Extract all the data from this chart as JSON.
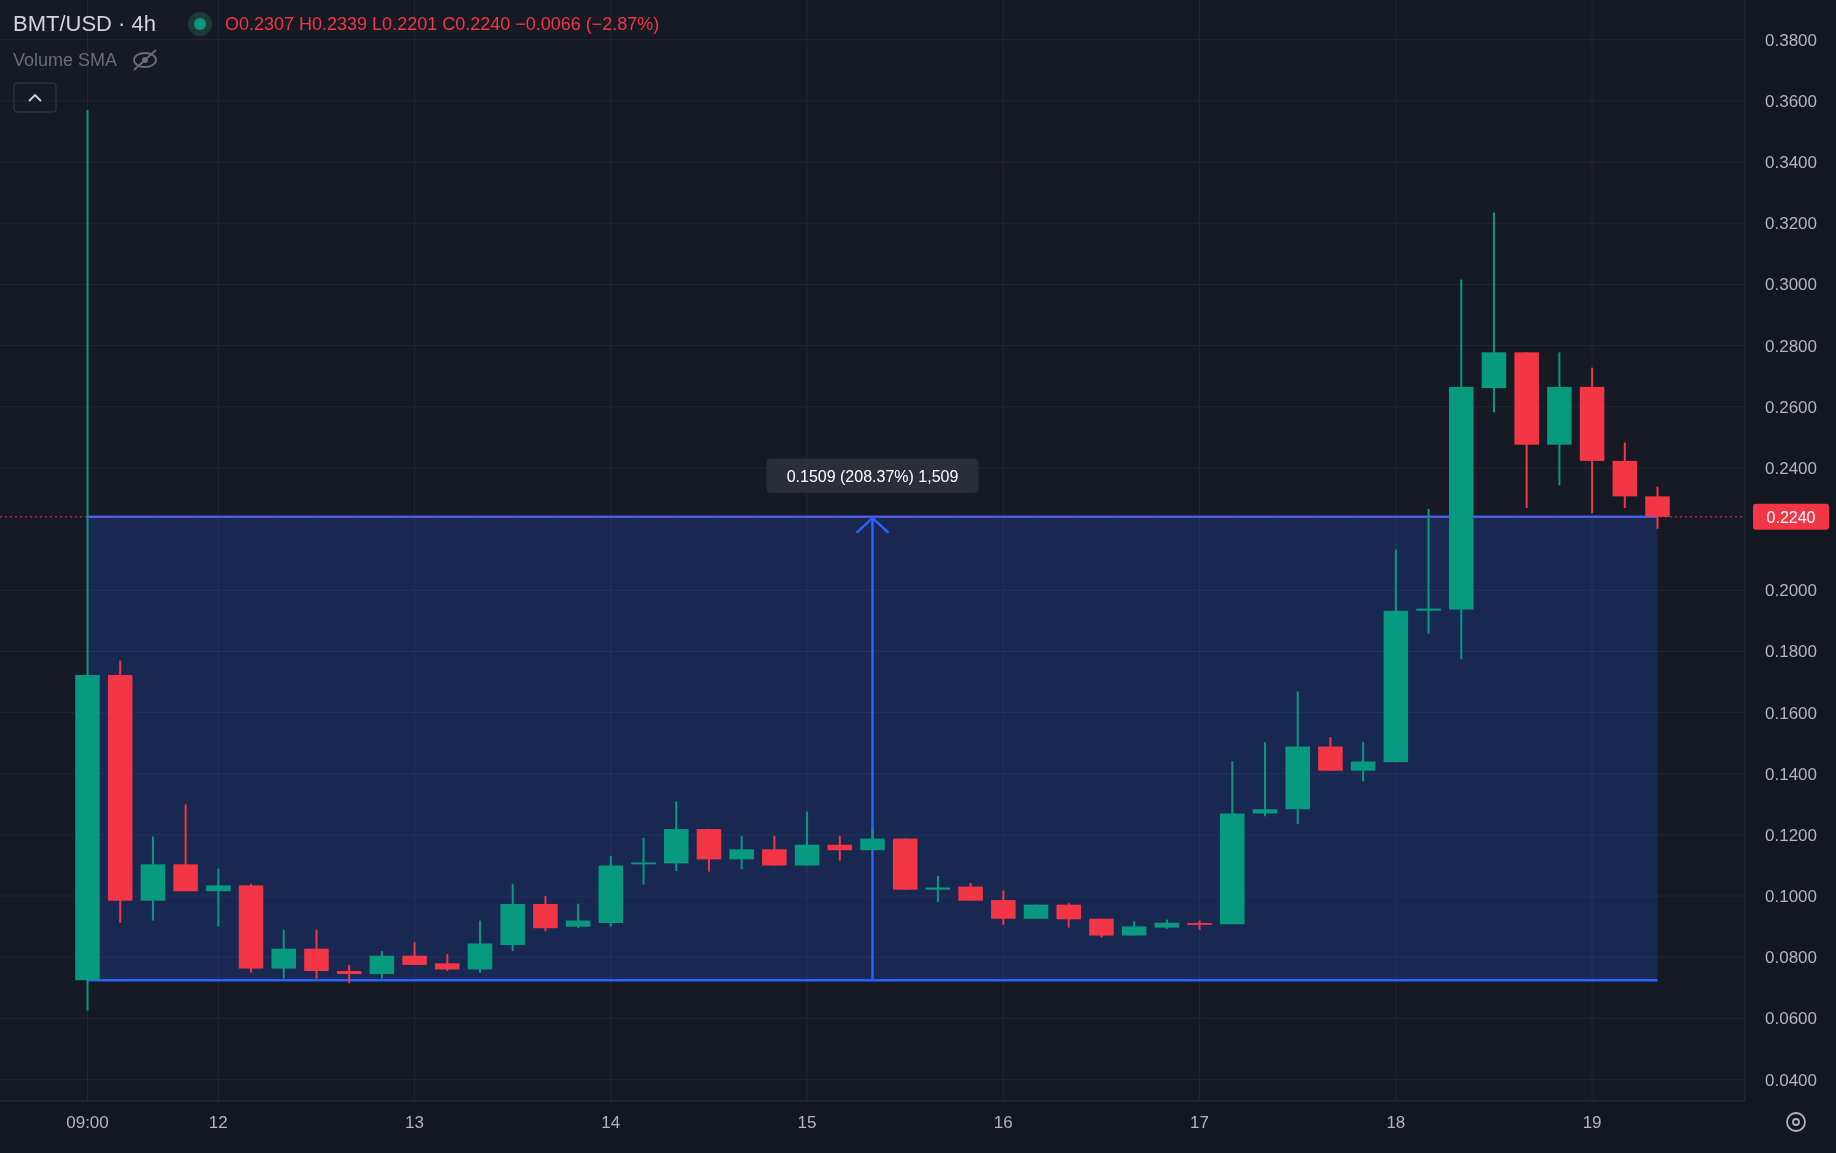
{
  "chart_data": {
    "type": "candlestick",
    "title": "BMT/USD · 4h",
    "annotations": [
      "O0.2307 H0.2339 L0.2201 C0.2240 −0.0066 (−2.87%)",
      "Volume SMA",
      {
        "text": "0.1509 (208.37%) 1,509",
        "y": 0.224
      }
    ],
    "categories": [
      "09:00",
      null,
      null,
      null,
      "12",
      null,
      null,
      null,
      null,
      null,
      "13",
      null,
      null,
      null,
      null,
      null,
      "14",
      null,
      null,
      null,
      null,
      null,
      "15",
      null,
      null,
      null,
      null,
      null,
      "16",
      null,
      null,
      null,
      null,
      null,
      "17",
      null,
      null,
      null,
      null,
      null,
      "18",
      null,
      null,
      null,
      null,
      null,
      "19",
      null,
      null
    ],
    "ohlc": [
      [
        0.0725,
        0.357,
        0.0626,
        0.1723
      ],
      [
        0.1723,
        0.177,
        0.0912,
        0.0985
      ],
      [
        0.0985,
        0.1195,
        0.092,
        0.1104
      ],
      [
        0.1104,
        0.13,
        0.1016,
        0.1016
      ],
      [
        0.1016,
        0.109,
        0.09,
        0.1035
      ],
      [
        0.1035,
        0.104,
        0.075,
        0.0763
      ],
      [
        0.0763,
        0.089,
        0.073,
        0.0828
      ],
      [
        0.0828,
        0.089,
        0.073,
        0.0755
      ],
      [
        0.0755,
        0.0775,
        0.0715,
        0.0745
      ],
      [
        0.0745,
        0.082,
        0.073,
        0.0805
      ],
      [
        0.0805,
        0.085,
        0.0775,
        0.0775
      ],
      [
        0.078,
        0.081,
        0.0755,
        0.076
      ],
      [
        0.076,
        0.092,
        0.075,
        0.0845
      ],
      [
        0.084,
        0.104,
        0.082,
        0.0974
      ],
      [
        0.0974,
        0.1,
        0.0885,
        0.0895
      ],
      [
        0.09,
        0.0975,
        0.0895,
        0.092
      ],
      [
        0.0912,
        0.1132,
        0.09,
        0.11
      ],
      [
        0.1104,
        0.1191,
        0.1038,
        0.111
      ],
      [
        0.1107,
        0.131,
        0.1082,
        0.1219
      ],
      [
        0.1219,
        0.122,
        0.108,
        0.112
      ],
      [
        0.112,
        0.1197,
        0.1088,
        0.1153
      ],
      [
        0.1153,
        0.1197,
        0.11,
        0.11
      ],
      [
        0.11,
        0.1276,
        0.11,
        0.1168
      ],
      [
        0.1168,
        0.1197,
        0.1116,
        0.115
      ],
      [
        0.115,
        0.122,
        0.115,
        0.1188
      ],
      [
        0.1188,
        0.1188,
        0.1021,
        0.1021
      ],
      [
        0.1021,
        0.1066,
        0.0981,
        0.1028
      ],
      [
        0.1031,
        0.1043,
        0.0985,
        0.0985
      ],
      [
        0.0987,
        0.1018,
        0.0906,
        0.0926
      ],
      [
        0.0926,
        0.0972,
        0.0926,
        0.0972
      ],
      [
        0.0972,
        0.0977,
        0.0897,
        0.0924
      ],
      [
        0.0926,
        0.0926,
        0.0865,
        0.0871
      ],
      [
        0.0871,
        0.0918,
        0.0871,
        0.0901
      ],
      [
        0.0897,
        0.0923,
        0.0893,
        0.0913
      ],
      [
        0.0912,
        0.092,
        0.0889,
        0.0906
      ],
      [
        0.0908,
        0.1441,
        0.0908,
        0.127
      ],
      [
        0.127,
        0.1503,
        0.1261,
        0.1284
      ],
      [
        0.1284,
        0.1669,
        0.1235,
        0.1489
      ],
      [
        0.1489,
        0.152,
        0.141,
        0.141
      ],
      [
        0.141,
        0.1504,
        0.1375,
        0.144
      ],
      [
        0.1438,
        0.2133,
        0.1438,
        0.1933
      ],
      [
        0.1933,
        0.2266,
        0.1858,
        0.194
      ],
      [
        0.1937,
        0.3016,
        0.1774,
        0.2665
      ],
      [
        0.2661,
        0.3235,
        0.2582,
        0.2778
      ],
      [
        0.2778,
        0.2778,
        0.2269,
        0.2476
      ],
      [
        0.2476,
        0.2778,
        0.2343,
        0.2665
      ],
      [
        0.2665,
        0.2728,
        0.2252,
        0.2423
      ],
      [
        0.2423,
        0.2483,
        0.2269,
        0.2307
      ],
      [
        0.2307,
        0.2339,
        0.2201,
        0.224
      ]
    ],
    "colors": [
      "#089981",
      "#f23645",
      "#089981",
      "#f23645",
      "#089981",
      "#f23645",
      "#089981",
      "#f23645",
      "#f23645",
      "#089981",
      "#f23645",
      "#f23645",
      "#089981",
      "#089981",
      "#f23645",
      "#089981",
      "#089981",
      "#089981",
      "#089981",
      "#f23645",
      "#089981",
      "#f23645",
      "#089981",
      "#f23645",
      "#089981",
      "#f23645",
      "#089981",
      "#f23645",
      "#f23645",
      "#089981",
      "#f23645",
      "#f23645",
      "#089981",
      "#089981",
      "#f23645",
      "#089981",
      "#089981",
      "#089981",
      "#f23645",
      "#089981",
      "#089981",
      "#089981",
      "#089981",
      "#089981",
      "#f23645",
      "#089981",
      "#f23645",
      "#f23645",
      "#f23645"
    ],
    "ylim": [
      0.033,
      0.393
    ],
    "yticks": [
      {
        "value": 0.04,
        "label": "0.0400"
      },
      {
        "value": 0.06,
        "label": "0.0600"
      },
      {
        "value": 0.08,
        "label": "0.0800"
      },
      {
        "value": 0.1,
        "label": "0.1000"
      },
      {
        "value": 0.12,
        "label": "0.1200"
      },
      {
        "value": 0.14,
        "label": "0.1400"
      },
      {
        "value": 0.16,
        "label": "0.1600"
      },
      {
        "value": 0.18,
        "label": "0.1800"
      },
      {
        "value": 0.2,
        "label": "0.2000"
      },
      {
        "value": 0.24,
        "label": "0.2400"
      },
      {
        "value": 0.26,
        "label": "0.2600"
      },
      {
        "value": 0.28,
        "label": "0.2800"
      },
      {
        "value": 0.3,
        "label": "0.3000"
      },
      {
        "value": 0.32,
        "label": "0.3200"
      },
      {
        "value": 0.34,
        "label": "0.3400"
      },
      {
        "value": 0.36,
        "label": "0.3600"
      },
      {
        "value": 0.38,
        "label": "0.3800"
      }
    ],
    "bands": [
      {
        "axis": "y",
        "from": 0.0725,
        "to": 0.224,
        "color": "#2962ff"
      }
    ],
    "ref_lines": [
      {
        "axis": "y",
        "value": 0.224,
        "label": "0.2240",
        "color": "#f23645",
        "line_style": "dotted"
      }
    ],
    "grid": true
  }
}
